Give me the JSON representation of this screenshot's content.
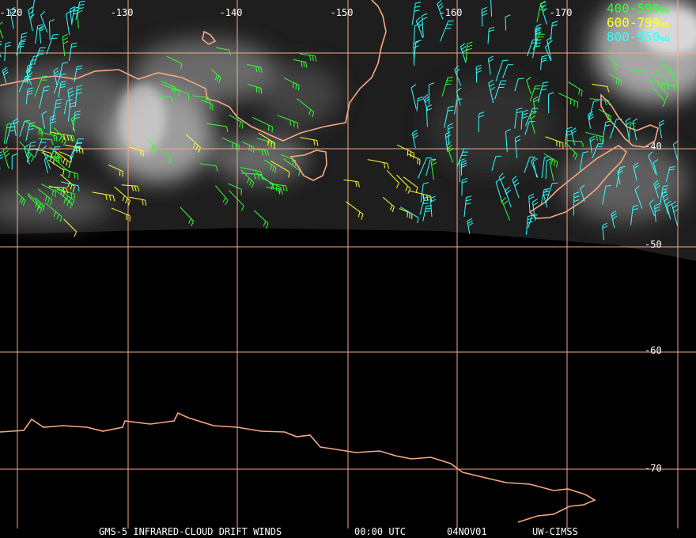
{
  "map": {
    "longitude_labels": [
      "-120",
      "-130",
      "-140",
      "-150",
      "-160",
      "-170"
    ],
    "latitude_labels": [
      "-40",
      "-50",
      "-60",
      "-70"
    ],
    "legend": [
      {
        "range": "400-599",
        "unit": "mb",
        "color": "#33ff33"
      },
      {
        "range": "600-799",
        "unit": "mb",
        "color": "#ffff33"
      },
      {
        "range": "800-950",
        "unit": "mb",
        "color": "#33ffff"
      }
    ],
    "footer": [
      "GMS-5 INFRARED-CLOUD DRIFT WINDS",
      "00:00 UTC",
      "04NOV01",
      "UW-CIMSS"
    ]
  }
}
